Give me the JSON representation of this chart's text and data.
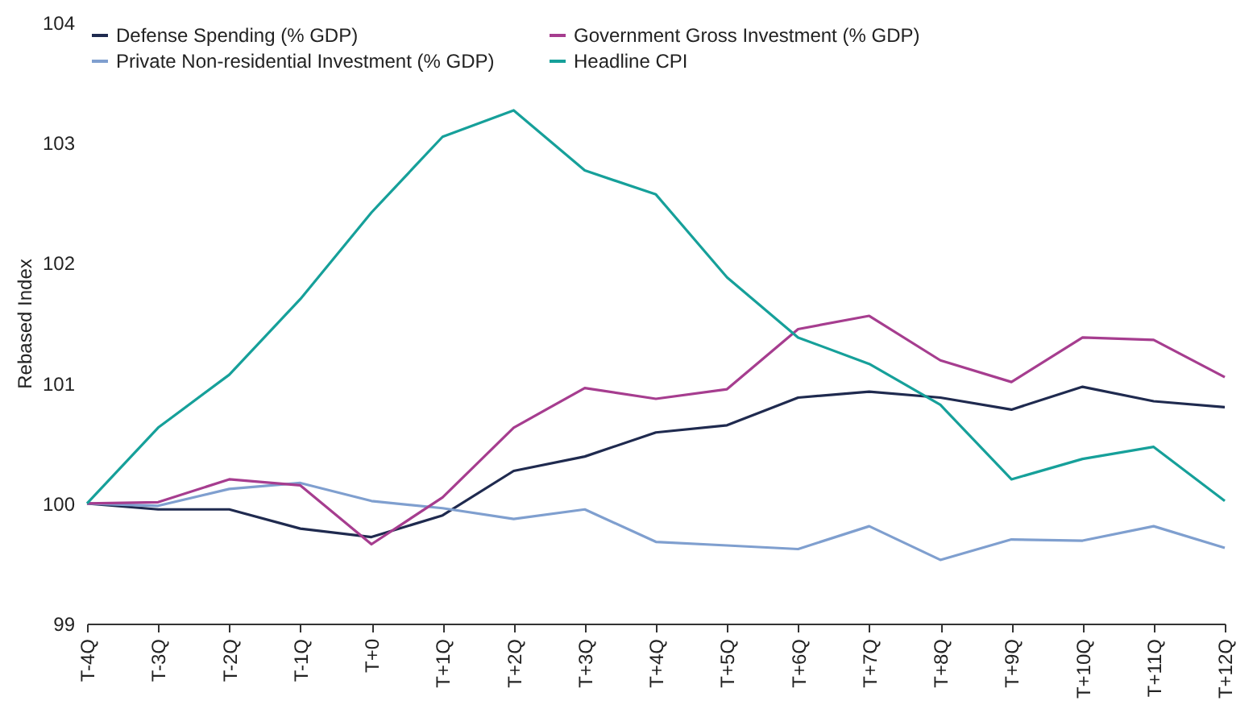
{
  "chart_data": {
    "type": "line",
    "ylabel": "Rebased Index",
    "categories": [
      "T-4Q",
      "T-3Q",
      "T-2Q",
      "T-1Q",
      "T+0",
      "T+1Q",
      "T+2Q",
      "T+3Q",
      "T+4Q",
      "T+5Q",
      "T+6Q",
      "T+7Q",
      "T+8Q",
      "T+9Q",
      "T+10Q",
      "T+11Q",
      "T+12Q"
    ],
    "series": [
      {
        "name": "Defense Spending (% GDP)",
        "color": "#1f2a4f",
        "values": [
          100,
          99.95,
          99.95,
          99.79,
          99.72,
          99.9,
          100.27,
          100.39,
          100.59,
          100.65,
          100.88,
          100.93,
          100.88,
          100.78,
          100.97,
          100.85,
          100.8
        ]
      },
      {
        "name": "Private Non-residential Investment (% GDP)",
        "color": "#7f9fcf",
        "values": [
          100,
          99.98,
          100.12,
          100.17,
          100.02,
          99.96,
          99.87,
          99.95,
          99.68,
          99.65,
          99.62,
          99.81,
          99.53,
          99.7,
          99.69,
          99.81,
          99.63
        ]
      },
      {
        "name": "Government Gross Investment (% GDP)",
        "color": "#a63d8f",
        "values": [
          100,
          100.01,
          100.2,
          100.15,
          99.66,
          100.05,
          100.63,
          100.96,
          100.87,
          100.95,
          101.45,
          101.56,
          101.19,
          101.01,
          101.38,
          101.36,
          101.05
        ]
      },
      {
        "name": "Headline CPI",
        "color": "#16a09a",
        "values": [
          100,
          100.63,
          101.07,
          101.7,
          102.42,
          103.05,
          103.27,
          102.77,
          102.57,
          101.88,
          101.38,
          101.16,
          100.82,
          100.2,
          100.37,
          100.47,
          100.02
        ]
      }
    ],
    "ylim": [
      99,
      104
    ],
    "yticks": [
      99,
      100,
      101,
      102,
      103,
      104
    ],
    "grid": false,
    "legend": "top left",
    "marker": "none",
    "line_style": "solid"
  }
}
